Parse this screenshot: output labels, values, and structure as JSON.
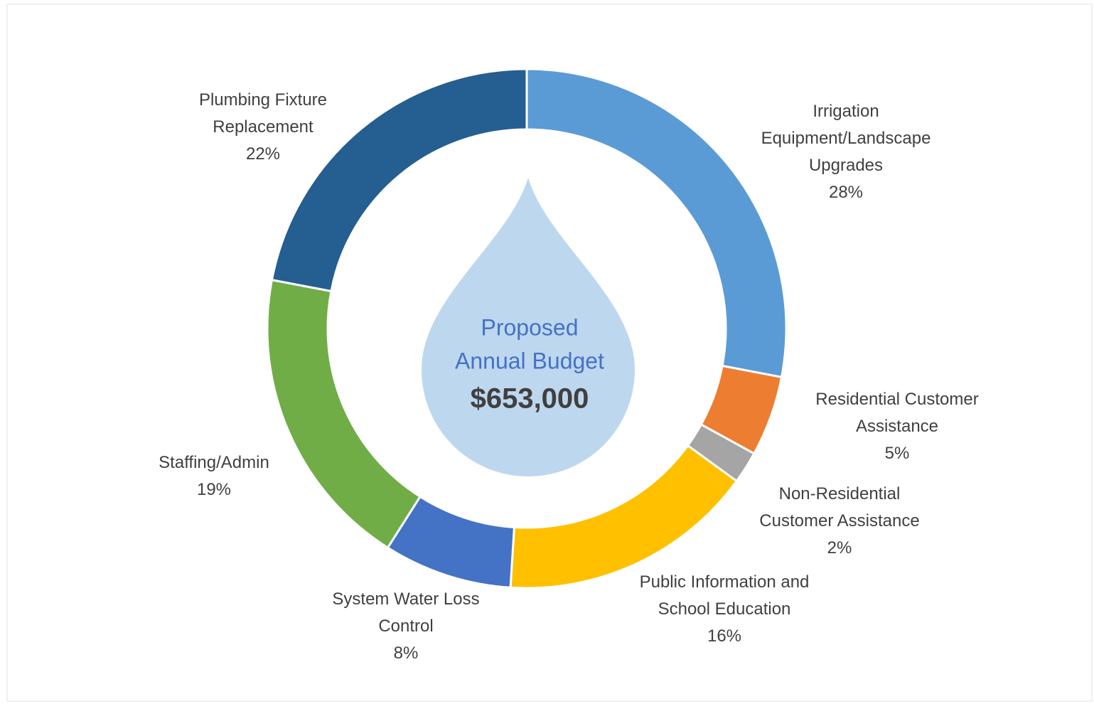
{
  "chart_data": {
    "type": "donut",
    "categories": [
      "Irrigation Equipment/Landscape Upgrades",
      "Residential Customer Assistance",
      "Non-Residential Customer Assistance",
      "Public Information and School Education",
      "System Water Loss Control",
      "Staffing/Admin",
      "Plumbing Fixture Replacement"
    ],
    "values": [
      28,
      5,
      2,
      16,
      8,
      19,
      22
    ],
    "value_labels": [
      "28%",
      "5%",
      "2%",
      "16%",
      "8%",
      "19%",
      "22%"
    ],
    "colors": [
      "#5b9bd5",
      "#ed7d31",
      "#a5a5a5",
      "#ffc000",
      "#4472c4",
      "#70ad47",
      "#255e91"
    ],
    "center_text": [
      "Proposed",
      "Annual Budget"
    ],
    "center_value": "$653,000"
  }
}
